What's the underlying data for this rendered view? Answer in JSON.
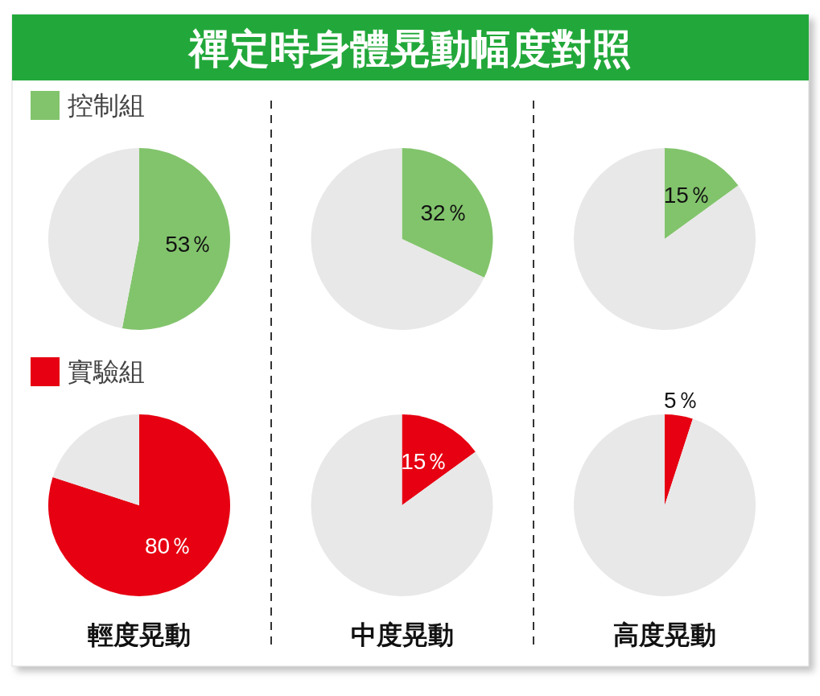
{
  "chart_data": [
    {
      "type": "pie",
      "title": "禪定時身體晃動幅度對照",
      "categories": [
        "控制組",
        null
      ],
      "values": [
        53,
        47
      ],
      "colors": [
        "#82c46c",
        "#e8e8e8"
      ],
      "value_labels": [
        "53％",
        null
      ],
      "legend": "top left"
    },
    {
      "type": "pie",
      "categories": [
        null,
        null
      ],
      "values": [
        32,
        68
      ],
      "colors": [
        "#82c46c",
        "#e8e8e8"
      ],
      "value_labels": [
        "32％",
        null
      ]
    },
    {
      "type": "pie",
      "categories": [
        null,
        null
      ],
      "values": [
        15,
        85
      ],
      "colors": [
        "#82c46c",
        "#e8e8e8"
      ],
      "value_labels": [
        "15％",
        null
      ]
    },
    {
      "type": "pie",
      "categories": [
        "實驗組",
        null
      ],
      "values": [
        80,
        20
      ],
      "colors": [
        "#e60012",
        "#e8e8e8"
      ],
      "value_labels": [
        "80％",
        null
      ],
      "legend": "top left",
      "xlabel": "輕度晃動"
    },
    {
      "type": "pie",
      "categories": [
        null,
        null
      ],
      "values": [
        15,
        85
      ],
      "colors": [
        "#e60012",
        "#e8e8e8"
      ],
      "value_labels": [
        "15％",
        null
      ],
      "xlabel": "中度晃動"
    },
    {
      "type": "pie",
      "categories": [
        null,
        null
      ],
      "values": [
        5,
        95
      ],
      "colors": [
        "#e60012",
        "#e8e8e8"
      ],
      "value_labels": [
        "5％",
        null
      ],
      "xlabel": "高度晃動"
    }
  ]
}
